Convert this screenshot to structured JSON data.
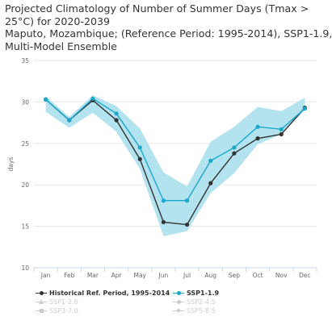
{
  "title_lines": [
    "Projected Climatology of Number of Summer Days (Tmax >",
    "25°C) for 2020-2039",
    "Maputo, Mozambique; (Reference Period: 1995-2014), SSP1-1.9,",
    "Multi-Model Ensemble"
  ],
  "colors": {
    "historical": "#333333",
    "ssp119": "#1aa7c9",
    "band": "#b4e3f0",
    "grid": "#e6e6e6",
    "axis_text": "#666666",
    "hidden": "#cccccc"
  },
  "chart_data": {
    "type": "line",
    "title": "Projected Climatology of Number of Summer Days (Tmax > 25°C) for 2020-2039",
    "subtitle": "Maputo, Mozambique; (Reference Period: 1995-2014), SSP1-1.9, Multi-Model Ensemble",
    "xlabel": "",
    "ylabel": "days",
    "ylim": [
      10,
      35
    ],
    "yticks": [
      10,
      15,
      20,
      25,
      30,
      35
    ],
    "grid": true,
    "legend_position": "bottom",
    "categories": [
      "Jan",
      "Feb",
      "Mar",
      "Apr",
      "May",
      "Jun",
      "Jul",
      "Aug",
      "Sep",
      "Oct",
      "Nov",
      "Dec"
    ],
    "series": [
      {
        "name": "Historical Ref. Period, 1995-2014",
        "values": [
          30.3,
          27.8,
          30.2,
          27.8,
          23.1,
          15.5,
          15.2,
          20.2,
          23.8,
          25.6,
          26.1,
          29.3
        ]
      },
      {
        "name": "SSP1-1.9",
        "values": [
          30.3,
          27.8,
          30.4,
          28.6,
          24.5,
          18.1,
          18.1,
          22.9,
          24.5,
          27.0,
          26.7,
          29.2
        ],
        "range_low": [
          28.8,
          26.9,
          28.7,
          26.4,
          21.9,
          13.8,
          14.4,
          19.0,
          21.4,
          24.9,
          26.1,
          29.0
        ],
        "range_high": [
          30.7,
          28.2,
          30.8,
          29.5,
          26.8,
          21.5,
          19.8,
          25.2,
          27.0,
          29.4,
          28.9,
          30.5
        ]
      }
    ]
  },
  "legend": {
    "rows": [
      [
        {
          "label": "Historical Ref. Period, 1995-2014",
          "color": "#333333",
          "marker": "circle",
          "bold": true,
          "hidden": false
        },
        {
          "label": "SSP1-1.9",
          "color": "#1aa7c9",
          "marker": "circle",
          "bold": true,
          "hidden": false
        }
      ],
      [
        {
          "label": "SSP1-2.6",
          "color": "#cccccc",
          "marker": "triangle",
          "bold": false,
          "hidden": true
        },
        {
          "label": "SSP2-4.5",
          "color": "#cccccc",
          "marker": "circle",
          "bold": false,
          "hidden": true
        }
      ],
      [
        {
          "label": "SSP3-7.0",
          "color": "#cccccc",
          "marker": "square",
          "bold": false,
          "hidden": true
        },
        {
          "label": "SSP5-8.5",
          "color": "#cccccc",
          "marker": "diamond",
          "bold": false,
          "hidden": true
        }
      ]
    ]
  }
}
